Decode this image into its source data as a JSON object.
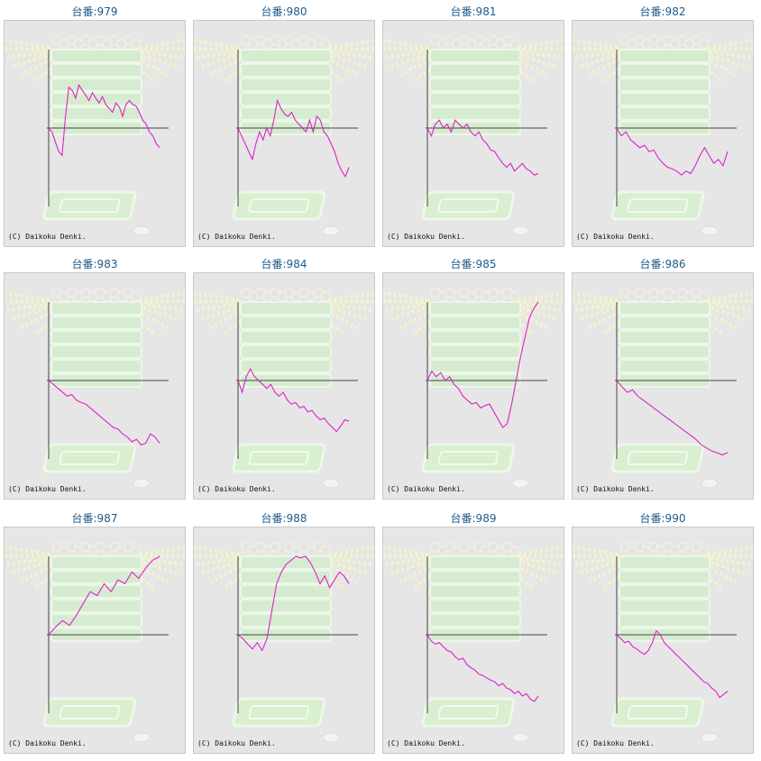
{
  "copyright": "(C) Daikoku Denki.",
  "colors": {
    "line": "#e020c8",
    "title": "#1d5b8c",
    "axis": "#444444",
    "panel": "#e6e6e6"
  },
  "chart_data": [
    {
      "type": "line",
      "title": "台番:979",
      "ylim": [
        -1,
        1
      ],
      "values": [
        0,
        -0.05,
        -0.18,
        -0.3,
        -0.35,
        0.15,
        0.52,
        0.48,
        0.38,
        0.55,
        0.48,
        0.42,
        0.35,
        0.45,
        0.38,
        0.32,
        0.4,
        0.3,
        0.25,
        0.2,
        0.32,
        0.27,
        0.15,
        0.3,
        0.35,
        0.3,
        0.28,
        0.2,
        0.1,
        0.05,
        -0.05,
        -0.1,
        -0.2,
        -0.25
      ]
    },
    {
      "type": "line",
      "title": "台番:980",
      "ylim": [
        -1,
        1
      ],
      "values": [
        0,
        -0.1,
        -0.2,
        -0.3,
        -0.4,
        -0.2,
        -0.05,
        -0.15,
        0.0,
        -0.1,
        0.1,
        0.35,
        0.25,
        0.18,
        0.15,
        0.2,
        0.1,
        0.05,
        0.0,
        -0.05,
        0.1,
        -0.05,
        0.15,
        0.1,
        -0.05,
        -0.1,
        -0.2,
        -0.3,
        -0.45,
        -0.55,
        -0.62,
        -0.5
      ]
    },
    {
      "type": "line",
      "title": "台番:981",
      "ylim": [
        -1,
        1
      ],
      "values": [
        0,
        -0.1,
        0.05,
        0.1,
        0.0,
        0.05,
        -0.05,
        0.1,
        0.05,
        0.0,
        0.05,
        -0.05,
        -0.1,
        -0.05,
        -0.15,
        -0.2,
        -0.28,
        -0.3,
        -0.38,
        -0.45,
        -0.5,
        -0.45,
        -0.55,
        -0.5,
        -0.45,
        -0.52,
        -0.55,
        -0.6,
        -0.58
      ]
    },
    {
      "type": "line",
      "title": "台番:982",
      "ylim": [
        -1,
        1
      ],
      "values": [
        0,
        -0.1,
        -0.05,
        -0.15,
        -0.2,
        -0.25,
        -0.22,
        -0.3,
        -0.28,
        -0.38,
        -0.45,
        -0.5,
        -0.52,
        -0.55,
        -0.6,
        -0.55,
        -0.58,
        -0.48,
        -0.35,
        -0.25,
        -0.35,
        -0.45,
        -0.4,
        -0.48,
        -0.3
      ]
    },
    {
      "type": "line",
      "title": "台番:983",
      "ylim": [
        -1,
        1
      ],
      "values": [
        0,
        -0.05,
        -0.1,
        -0.15,
        -0.2,
        -0.18,
        -0.25,
        -0.28,
        -0.3,
        -0.35,
        -0.4,
        -0.45,
        -0.5,
        -0.55,
        -0.6,
        -0.62,
        -0.68,
        -0.72,
        -0.78,
        -0.75,
        -0.82,
        -0.8,
        -0.68,
        -0.72,
        -0.8
      ]
    },
    {
      "type": "line",
      "title": "台番:984",
      "ylim": [
        -1,
        1
      ],
      "values": [
        0,
        -0.15,
        0.05,
        0.15,
        0.05,
        0.0,
        -0.05,
        -0.1,
        -0.05,
        -0.15,
        -0.2,
        -0.15,
        -0.25,
        -0.3,
        -0.28,
        -0.35,
        -0.33,
        -0.4,
        -0.38,
        -0.45,
        -0.5,
        -0.48,
        -0.55,
        -0.6,
        -0.65,
        -0.58,
        -0.5,
        -0.52
      ]
    },
    {
      "type": "line",
      "title": "台番:985",
      "ylim": [
        -1,
        1
      ],
      "values": [
        0,
        0.12,
        0.05,
        0.1,
        0.0,
        0.05,
        -0.05,
        -0.1,
        -0.2,
        -0.25,
        -0.3,
        -0.28,
        -0.35,
        -0.32,
        -0.3,
        -0.4,
        -0.5,
        -0.6,
        -0.55,
        -0.3,
        0.0,
        0.3,
        0.55,
        0.8,
        0.92,
        1.0
      ]
    },
    {
      "type": "line",
      "title": "台番:986",
      "ylim": [
        -1,
        1
      ],
      "values": [
        0,
        -0.08,
        -0.15,
        -0.12,
        -0.2,
        -0.25,
        -0.3,
        -0.35,
        -0.4,
        -0.45,
        -0.5,
        -0.55,
        -0.6,
        -0.65,
        -0.7,
        -0.75,
        -0.82,
        -0.86,
        -0.9,
        -0.92,
        -0.95,
        -0.92
      ]
    },
    {
      "type": "line",
      "title": "台番:987",
      "ylim": [
        -1,
        1
      ],
      "values": [
        0,
        0.1,
        0.18,
        0.12,
        0.25,
        0.4,
        0.55,
        0.5,
        0.65,
        0.55,
        0.7,
        0.65,
        0.8,
        0.72,
        0.85,
        0.95,
        1.0
      ]
    },
    {
      "type": "line",
      "title": "台番:988",
      "ylim": [
        -1,
        1
      ],
      "values": [
        0,
        -0.05,
        -0.12,
        -0.18,
        -0.1,
        -0.2,
        -0.05,
        0.3,
        0.65,
        0.8,
        0.9,
        0.95,
        1.0,
        0.98,
        1.0,
        0.92,
        0.8,
        0.65,
        0.75,
        0.6,
        0.7,
        0.8,
        0.75,
        0.65
      ]
    },
    {
      "type": "line",
      "title": "台番:989",
      "ylim": [
        -1,
        1
      ],
      "values": [
        0,
        -0.08,
        -0.12,
        -0.1,
        -0.15,
        -0.2,
        -0.22,
        -0.28,
        -0.32,
        -0.3,
        -0.38,
        -0.42,
        -0.45,
        -0.5,
        -0.52,
        -0.55,
        -0.58,
        -0.6,
        -0.65,
        -0.62,
        -0.68,
        -0.7,
        -0.75,
        -0.72,
        -0.78,
        -0.75,
        -0.82,
        -0.85,
        -0.78
      ]
    },
    {
      "type": "line",
      "title": "台番:990",
      "ylim": [
        -1,
        1
      ],
      "values": [
        0,
        -0.05,
        -0.1,
        -0.08,
        -0.15,
        -0.18,
        -0.22,
        -0.25,
        -0.2,
        -0.1,
        0.05,
        0.0,
        -0.1,
        -0.15,
        -0.2,
        -0.25,
        -0.3,
        -0.35,
        -0.4,
        -0.45,
        -0.5,
        -0.55,
        -0.6,
        -0.62,
        -0.68,
        -0.72,
        -0.8,
        -0.76,
        -0.72
      ]
    }
  ]
}
